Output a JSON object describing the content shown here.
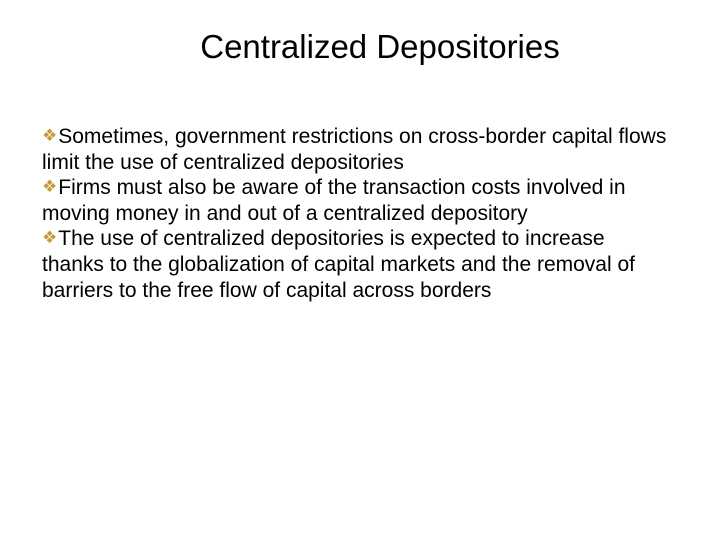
{
  "slide": {
    "title": "Centralized Depositories",
    "title_fontsize": 33,
    "title_color": "#000000",
    "body_fontsize": 21,
    "body_color": "#000000",
    "bullet_marker": "❖",
    "bullet_marker_color": "#c49a3a",
    "background_color": "#ffffff",
    "bullets": [
      "Sometimes, government restrictions on cross-border capital flows limit the use of centralized depositories",
      "Firms must also be aware of the transaction costs involved in moving money in and out of a centralized depository",
      "The use of centralized depositories is expected to increase thanks to the globalization of capital markets and the removal of barriers to the free flow of capital across borders"
    ]
  }
}
